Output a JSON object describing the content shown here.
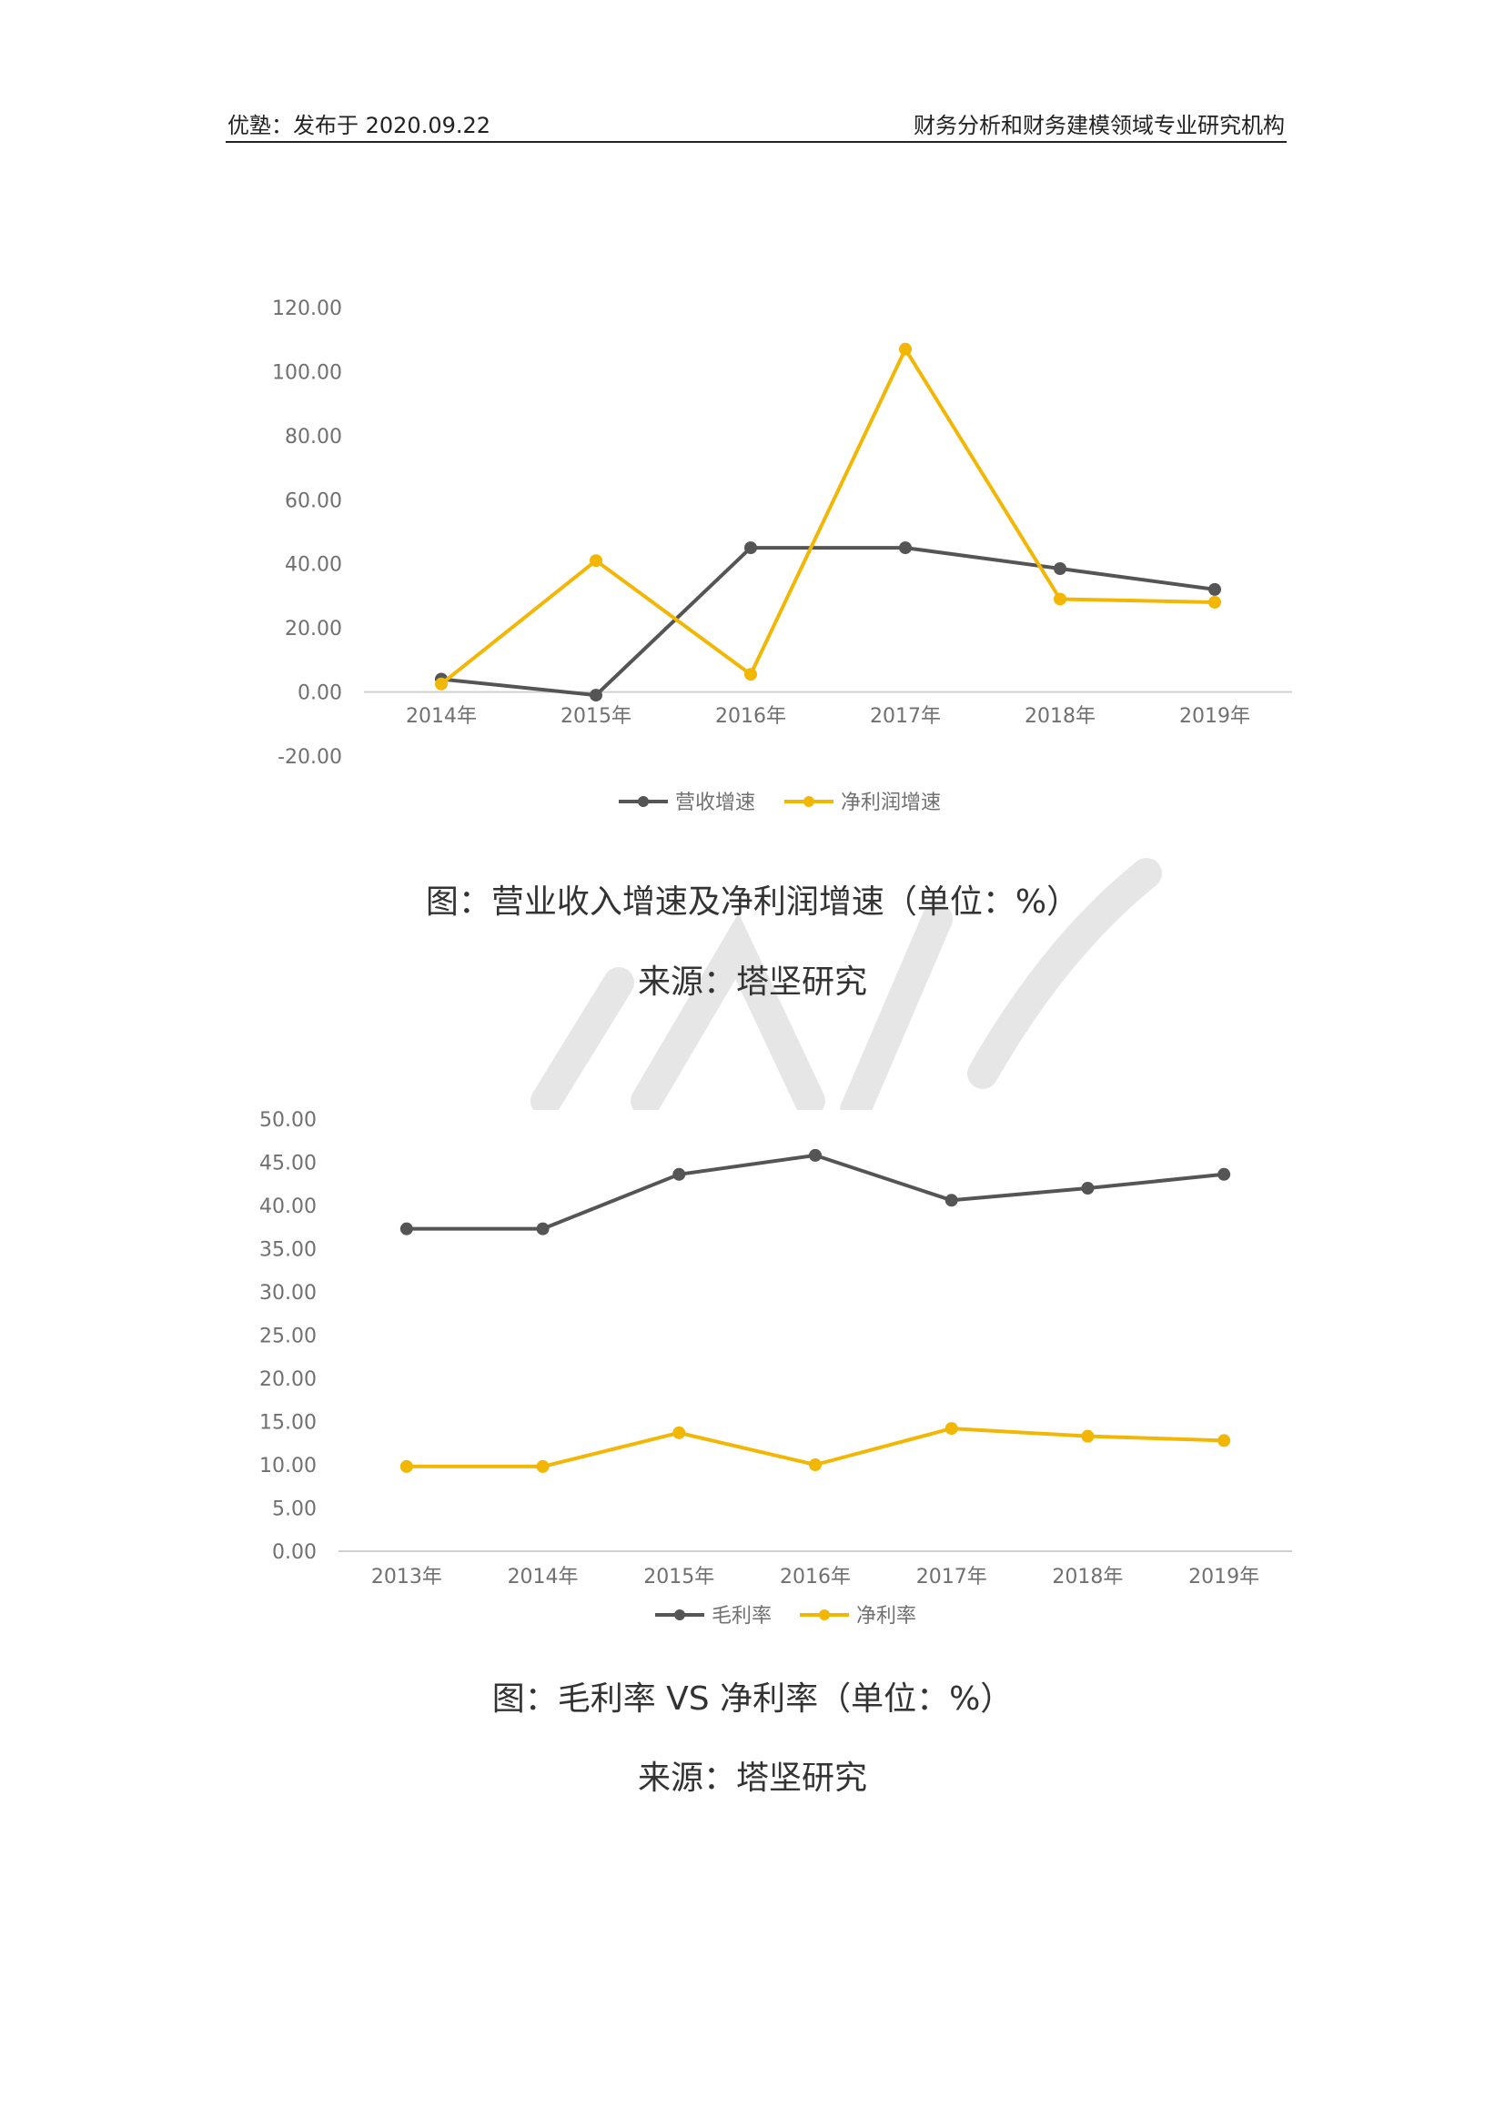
{
  "header": {
    "left": "优塾：发布于 2020.09.22",
    "right": "财务分析和财务建模领域专业研究机构"
  },
  "colors": {
    "revenue": "#555555",
    "profit": "#F2B705",
    "axis": "#D0D0D0",
    "tick": "#707070"
  },
  "chart_data": [
    {
      "type": "line",
      "x": [
        "2014年",
        "2015年",
        "2016年",
        "2017年",
        "2018年",
        "2019年"
      ],
      "series": [
        {
          "name": "营收增速",
          "values": [
            4.0,
            -1.0,
            45.0,
            45.0,
            38.5,
            32.0
          ]
        },
        {
          "name": "净利润增速",
          "values": [
            2.5,
            41.0,
            5.5,
            107.0,
            29.0,
            28.0
          ]
        }
      ],
      "yticks": [
        "120.00",
        "100.00",
        "80.00",
        "60.00",
        "40.00",
        "20.00",
        "0.00",
        "-20.00"
      ],
      "ylim": [
        -20,
        120
      ],
      "legend": "bottom"
    },
    {
      "type": "line",
      "x": [
        "2013年",
        "2014年",
        "2015年",
        "2016年",
        "2017年",
        "2018年",
        "2019年"
      ],
      "series": [
        {
          "name": "毛利率",
          "values": [
            37.3,
            37.3,
            43.6,
            45.8,
            40.6,
            42.0,
            43.6
          ]
        },
        {
          "name": "净利率",
          "values": [
            9.8,
            9.8,
            13.7,
            10.0,
            14.2,
            13.3,
            12.8
          ]
        }
      ],
      "yticks": [
        "50.00",
        "45.00",
        "40.00",
        "35.00",
        "30.00",
        "25.00",
        "20.00",
        "15.00",
        "10.00",
        "5.00",
        "0.00"
      ],
      "ylim": [
        0,
        50
      ],
      "legend": "bottom"
    }
  ],
  "captions": {
    "chart1_title": "图：营业收入增速及净利润增速（单位：%）",
    "chart1_source": "来源：塔坚研究",
    "chart2_title": "图：毛利率 VS 净利率（单位：%）",
    "chart2_source": "来源：塔坚研究"
  }
}
